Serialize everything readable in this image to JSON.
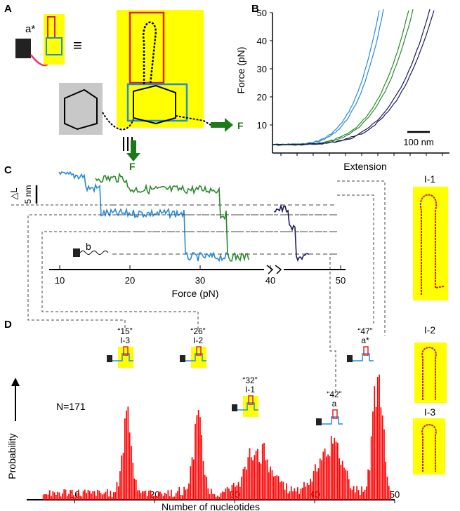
{
  "panel_labels": {
    "a": "A",
    "b": "B",
    "c": "C",
    "d": "D"
  },
  "panel_a": {
    "schematic_label": "a*",
    "equiv_symbol": "≡",
    "force_label": "F",
    "colors": {
      "highlight": "#ffff00",
      "box_red": "#e0202a",
      "box_blue": "#2090d8",
      "linker": "#e6336f",
      "arrow": "#1c7a1c"
    }
  },
  "panel_b": {
    "ylabel": "Force (pN)",
    "xlabel": "Extension",
    "scalebar": "100 nm",
    "yticks": [
      "10",
      "20",
      "30",
      "40",
      "50"
    ],
    "colors": [
      "#2a8ad6",
      "#2a8a2a",
      "#1a1a5e"
    ]
  },
  "panel_c": {
    "ylabel": "△L",
    "scalebar": "5 nm",
    "xlabel": "Force (pN)",
    "xticks": [
      "10",
      "20",
      "30",
      "40",
      "50"
    ],
    "probe_label": "b",
    "colors": [
      "#2a8ad6",
      "#2a8a2a",
      "#1a1a5e"
    ]
  },
  "structures": [
    {
      "label": "I-1"
    },
    {
      "label": "I-2"
    },
    {
      "label": "I-3"
    }
  ],
  "peak_labels": [
    {
      "count": "“15”",
      "name": "I-3"
    },
    {
      "count": "“26”",
      "name": "I-2"
    },
    {
      "count": "“32”",
      "name": "I-1"
    },
    {
      "count": "“42”",
      "name": "a"
    },
    {
      "count": "“47”",
      "name": "a*"
    }
  ],
  "chart_data": {
    "type": "bar",
    "xlabel": "Number of nucleotides",
    "ylabel": "Probability",
    "annotation": "N=171",
    "xlim": [
      4,
      50
    ],
    "xticks": [
      10,
      20,
      30,
      40,
      50
    ],
    "bar_color": "#ff0000",
    "bin_width": 0.2,
    "peaks": [
      {
        "center": 16.5,
        "height": 1.0,
        "width": 0.55
      },
      {
        "center": 25.3,
        "height": 0.8,
        "width": 0.6
      },
      {
        "center": 33.0,
        "height": 0.5,
        "width": 1.6
      },
      {
        "center": 41.8,
        "height": 0.6,
        "width": 1.5
      },
      {
        "center": 47.8,
        "height": 1.42,
        "width": 0.6
      }
    ],
    "baseline": 0.1
  }
}
